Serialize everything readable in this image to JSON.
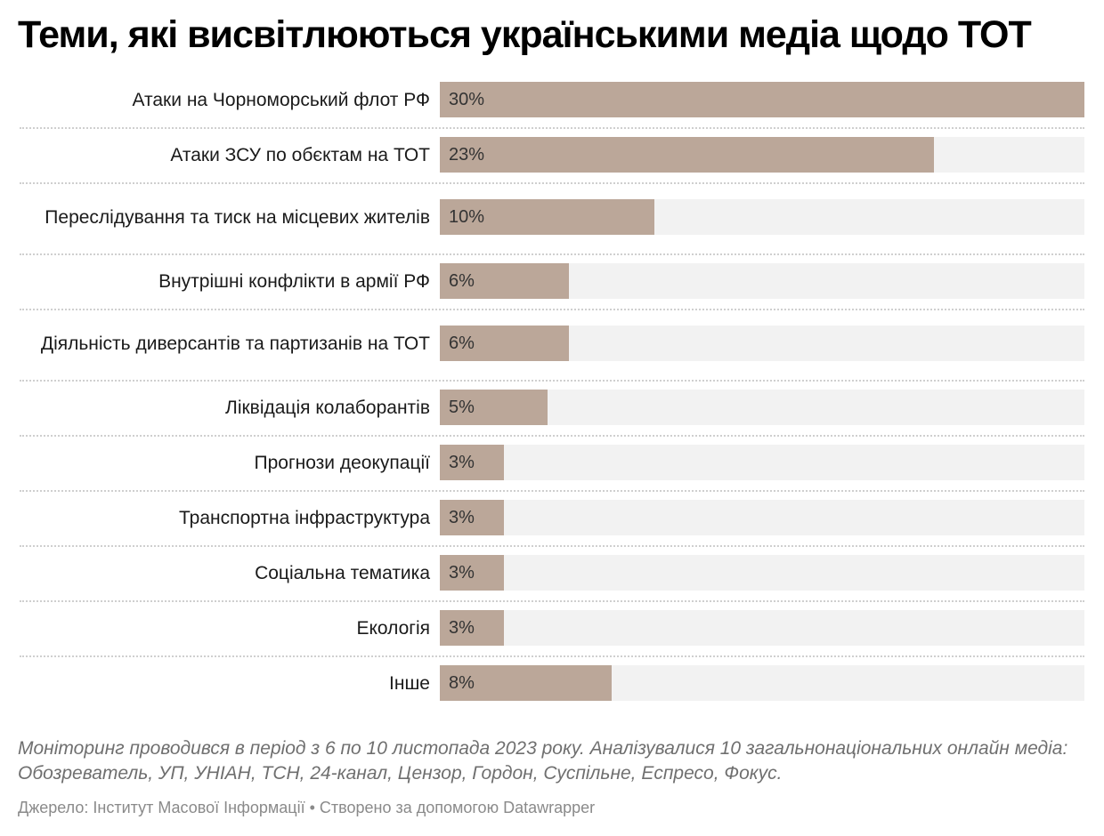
{
  "colors": {
    "bar": "#bba799",
    "track": "#f2f2f2",
    "title": "#000000",
    "notes": "#6f6f6f",
    "footer": "#8a8a8a"
  },
  "chart_data": {
    "type": "bar",
    "orientation": "horizontal",
    "title": "Теми, які висвітлюються українськими медіа щодо ТОТ",
    "categories": [
      "Атаки на Чорноморський флот РФ",
      "Атаки ЗСУ по обєктам на ТОТ",
      "Переслідування та тиск на місцевих жителів",
      "Внутрішні конфлікти в армії РФ",
      "Діяльність диверсантів та партизанів на ТОТ",
      "Ліквідація колаборантів",
      "Прогнози деокупації",
      "Транспортна інфраструктура",
      "Соціальна тематика",
      "Екологія",
      "Інше"
    ],
    "values": [
      30,
      23,
      10,
      6,
      6,
      5,
      3,
      3,
      3,
      3,
      8
    ],
    "value_labels": [
      "30%",
      "23%",
      "10%",
      "6%",
      "6%",
      "5%",
      "3%",
      "3%",
      "3%",
      "3%",
      "8%"
    ],
    "xlim": [
      0,
      30
    ],
    "grid": false,
    "legend": "none"
  },
  "notes": "Моніторинг проводився в період з 6 по 10 листопада 2023 року. Аналізувалися 10 загальнонаціональних онлайн медіа: Обозреватель, УП, УНІАН, ТСН, 24-канал, Цензор, Гордон, Суспільне, Еспресо, Фокус.",
  "footer": "Джерело: Інститут Масової Інформації • Створено за допомогою Datawrapper"
}
